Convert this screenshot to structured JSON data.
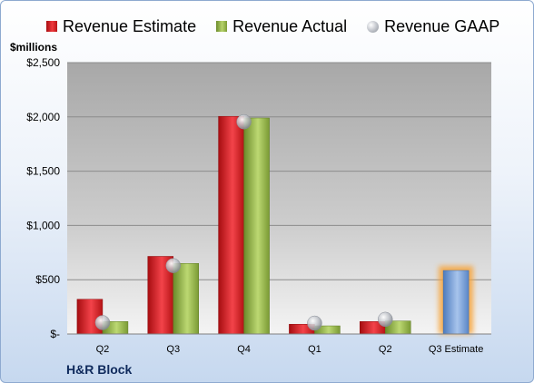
{
  "company": "H&R Block",
  "chart_data": {
    "type": "bar",
    "ylabel": "$millions",
    "categories": [
      "Q2",
      "Q3",
      "Q4",
      "Q1",
      "Q2",
      "Q3 Estimate"
    ],
    "y_ticks": [
      "$-",
      "$500",
      "$1,000",
      "$1,500",
      "$2,000",
      "$2,500"
    ],
    "ylim": [
      0,
      2500
    ],
    "legend_position": "top",
    "grid": true,
    "series": [
      {
        "name": "Revenue Estimate",
        "type": "bar",
        "color": "#d71a1f",
        "values": [
          320,
          715,
          2005,
          90,
          115,
          null
        ]
      },
      {
        "name": "Revenue Actual",
        "type": "bar",
        "color": "#9bbb59",
        "values": [
          115,
          650,
          1990,
          75,
          120,
          null
        ]
      },
      {
        "name": "Revenue GAAP",
        "type": "marker",
        "color": "#b9bcc2",
        "values": [
          105,
          630,
          1955,
          100,
          135,
          null
        ]
      }
    ],
    "projection": {
      "category": "Q3 Estimate",
      "value": 585,
      "color": "#6f9bd6",
      "glow": "#f7a43a"
    }
  }
}
